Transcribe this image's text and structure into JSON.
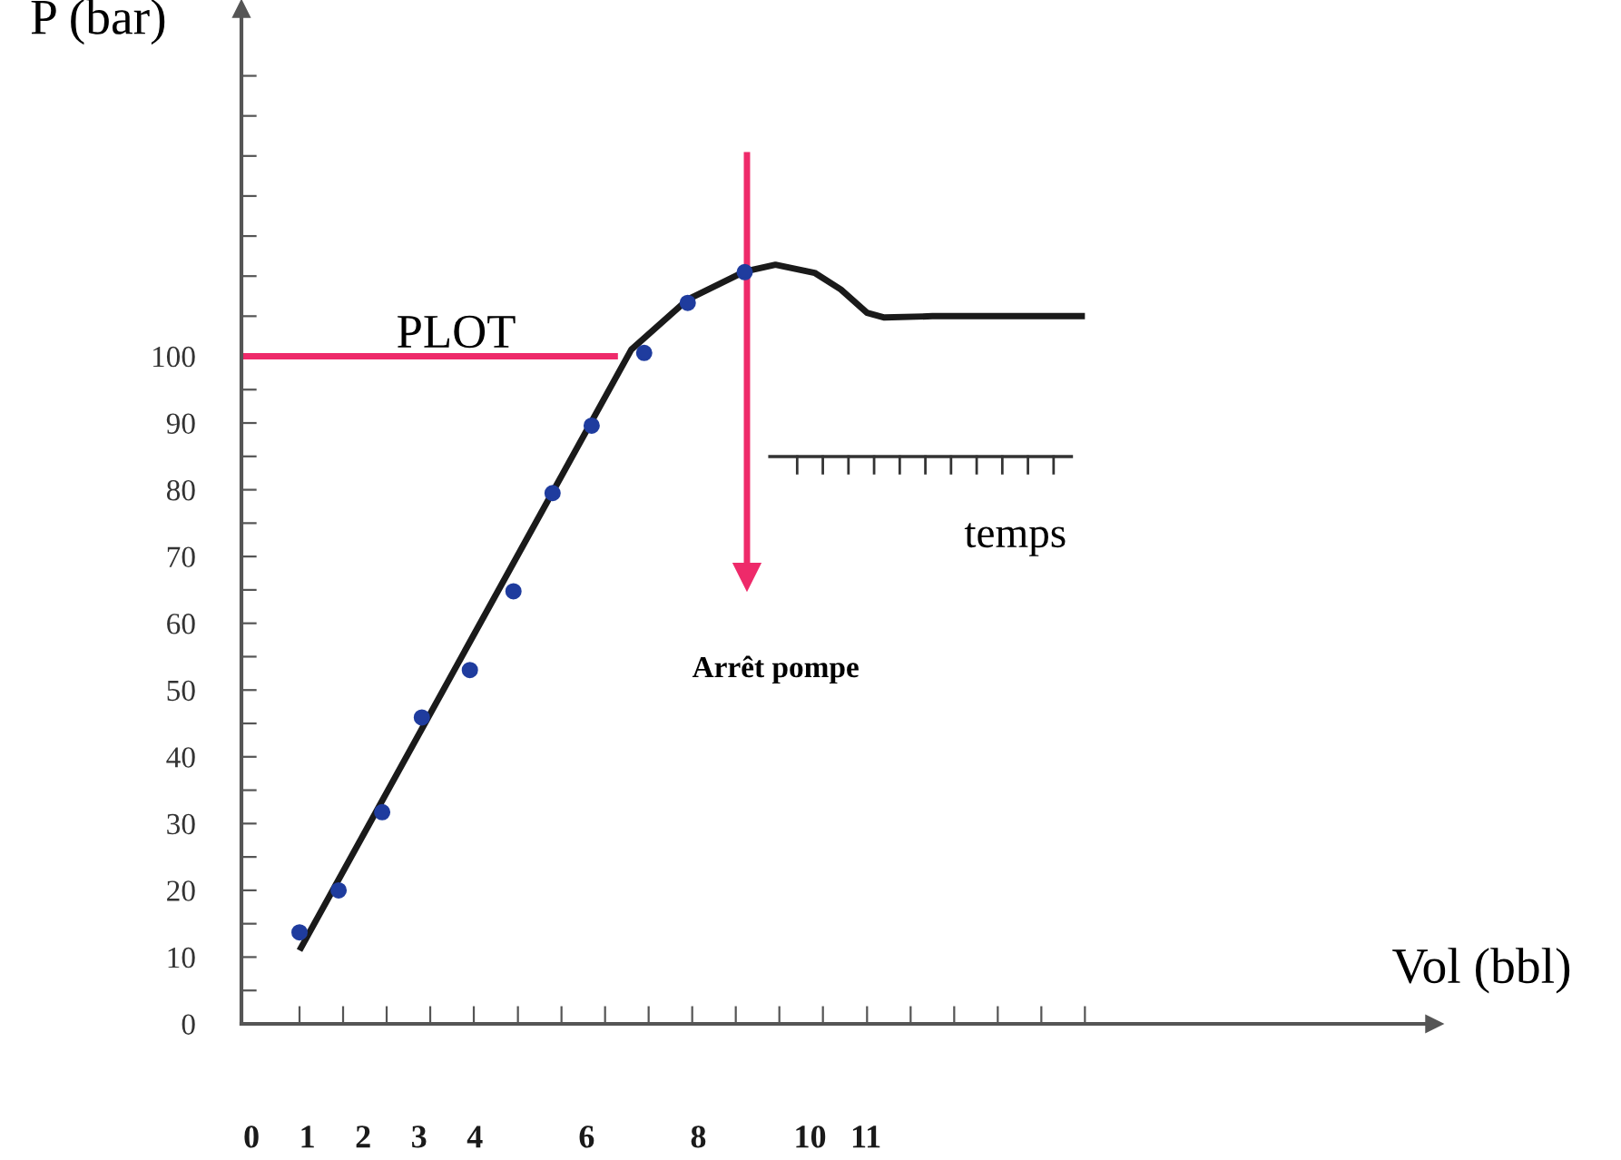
{
  "chart_data": {
    "type": "line",
    "xlabel": "Vol (bbl)",
    "ylabel": "P (bar)",
    "xlim": [
      -0.18,
      21.17
    ],
    "ylim": [
      0,
      152
    ],
    "xticks": [
      0,
      {
        "value": 0.86,
        "label": null
      },
      1,
      {
        "value": 1.64,
        "label": null
      },
      2,
      {
        "value": 2.42,
        "label": null
      },
      3,
      {
        "value": 3.2,
        "label": null
      },
      {
        "value": 3.98,
        "label": null
      },
      4,
      {
        "value": 4.77,
        "label": null
      },
      {
        "value": 5.55,
        "label": null
      },
      6,
      {
        "value": 6.33,
        "label": null
      },
      {
        "value": 7.11,
        "label": null
      },
      {
        "value": 7.89,
        "label": null
      },
      8,
      {
        "value": 8.67,
        "label": null
      },
      {
        "value": 9.45,
        "label": null
      },
      10,
      {
        "value": 10.23,
        "label": null
      },
      11,
      {
        "value": 11.02,
        "label": null
      },
      {
        "value": 11.8,
        "label": null
      },
      {
        "value": 12.58,
        "label": null
      },
      {
        "value": 13.36,
        "label": null
      },
      {
        "value": 14.14,
        "label": null
      },
      {
        "value": 14.92,
        "label": null
      }
    ],
    "yticks": [
      0,
      {
        "value": 5,
        "label": null
      },
      10,
      {
        "value": 15,
        "label": null
      },
      20,
      {
        "value": 25,
        "label": null
      },
      30,
      {
        "value": 35,
        "label": null
      },
      40,
      {
        "value": 45,
        "label": null
      },
      50,
      {
        "value": 55,
        "label": null
      },
      60,
      {
        "value": 65,
        "label": null
      },
      70,
      {
        "value": 75,
        "label": null
      },
      80,
      {
        "value": 85,
        "label": null
      },
      90,
      {
        "value": 95,
        "label": null
      },
      100,
      {
        "value": 106,
        "label": null
      },
      {
        "value": 112,
        "label": null
      },
      {
        "value": 118,
        "label": null
      },
      {
        "value": 124,
        "label": null
      },
      {
        "value": 130,
        "label": null
      },
      {
        "value": 136,
        "label": null
      },
      {
        "value": 142,
        "label": null
      }
    ],
    "grid": false,
    "legend": false,
    "series": [
      {
        "color": "#1a1a1a",
        "marker": "none",
        "x": [
          0.86,
          6.8,
          7.81,
          8.83,
          9.38,
          10.08,
          10.55,
          11.02,
          11.33,
          12.19,
          14.92
        ],
        "values": [
          11,
          101,
          108.5,
          112.7,
          113.7,
          112.5,
          110,
          106.5,
          105.8,
          106,
          106
        ]
      },
      {
        "type": "scatter",
        "color": "#1f3c9e",
        "marker": "circle",
        "x": [
          0.86,
          1.56,
          2.34,
          3.05,
          3.91,
          4.69,
          5.39,
          6.09,
          7.03,
          7.81,
          8.83
        ],
        "values": [
          13.7,
          20,
          31.7,
          45.9,
          53,
          64.8,
          79.5,
          89.6,
          100.5,
          108,
          112.6
        ]
      },
      {
        "color": "#ee2a6a",
        "marker": "none",
        "x": [
          -0.18,
          6.56
        ],
        "values": [
          100,
          100
        ]
      },
      {
        "color": "#ee2a6a",
        "marker": "triangle",
        "x": [
          8.87,
          8.87
        ],
        "values": [
          130.6,
          67
        ]
      }
    ],
    "annotations": [
      "PLOT",
      "temps",
      "Arrêt pompe"
    ]
  }
}
